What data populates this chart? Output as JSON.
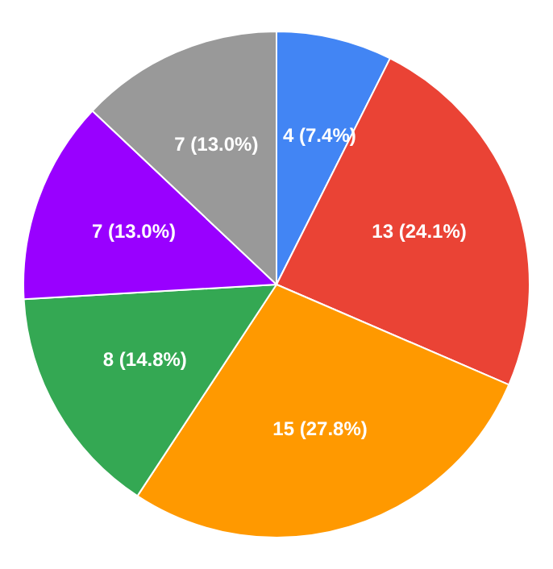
{
  "chart_data": {
    "type": "pie",
    "categories": [
      null,
      null,
      null,
      null,
      null,
      null
    ],
    "values": [
      4,
      13,
      15,
      8,
      7,
      7
    ],
    "colors": [
      "#4285f4",
      "#ea4335",
      "#ff9900",
      "#34a853",
      "#9900ff",
      "#999999"
    ],
    "value_labels": [
      "4 (7.4%)",
      "13 (24.1%)",
      "15 (27.8%)",
      "8 (14.8%)",
      "7 (13.0%)",
      "7 (13.0%)"
    ],
    "legend": false
  }
}
